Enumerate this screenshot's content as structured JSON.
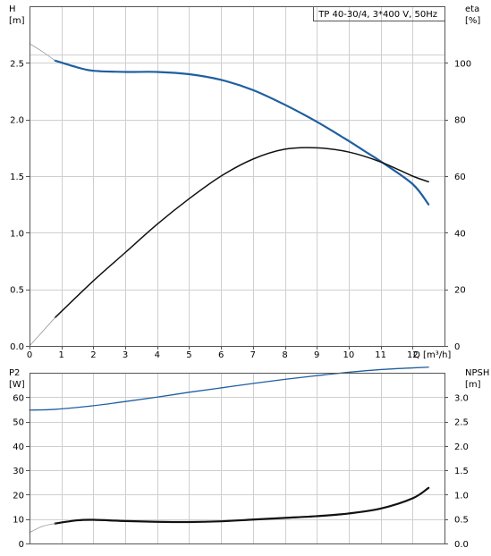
{
  "chart_data": [
    {
      "type": "line",
      "title": "TP 40-30/4, 3*400 V, 50Hz",
      "x_label": "Q [m³/h]",
      "x_ticks": [
        "0",
        "1",
        "2",
        "3",
        "4",
        "5",
        "6",
        "7",
        "8",
        "9",
        "10",
        "11",
        "12"
      ],
      "xlim": [
        0,
        13
      ],
      "left_axis": {
        "label_name": "H",
        "label_unit": "[m]",
        "ticks": [
          "0.0",
          "0.5",
          "1.0",
          "1.5",
          "2.0",
          "2.5"
        ],
        "ylim": [
          0,
          3.0
        ]
      },
      "right_axis": {
        "label_name": "eta",
        "label_unit": "[%]",
        "ticks": [
          "0",
          "20",
          "40",
          "60",
          "80",
          "100"
        ],
        "ylim": [
          0,
          120
        ]
      },
      "grid": true,
      "series": [
        {
          "axis": "left",
          "color": "#1f5fa0",
          "width": 2.2,
          "x": [
            0.8,
            1.5,
            2.0,
            3.0,
            4.0,
            5.0,
            6.0,
            7.0,
            8.0,
            9.0,
            10.0,
            10.5,
            11.0,
            12.0,
            12.5
          ],
          "y": [
            2.52,
            2.46,
            2.43,
            2.42,
            2.42,
            2.4,
            2.35,
            2.26,
            2.13,
            1.98,
            1.81,
            1.72,
            1.63,
            1.43,
            1.25
          ]
        },
        {
          "axis": "left",
          "color": "#999999",
          "width": 0.8,
          "x": [
            0.0,
            0.4,
            0.8
          ],
          "y": [
            2.67,
            2.6,
            2.52
          ]
        },
        {
          "axis": "right",
          "color": "#111111",
          "width": 1.5,
          "x": [
            0.8,
            2.0,
            3.0,
            4.0,
            5.0,
            6.0,
            7.0,
            8.0,
            9.0,
            10.0,
            11.0,
            12.0,
            12.5
          ],
          "y": [
            10,
            23,
            33,
            43,
            52,
            60,
            66,
            69.5,
            70,
            68.5,
            65,
            60,
            58
          ]
        },
        {
          "axis": "right",
          "color": "#999999",
          "width": 0.8,
          "x": [
            0.0,
            0.4,
            0.8
          ],
          "y": [
            0,
            5,
            10
          ]
        }
      ]
    },
    {
      "type": "line",
      "x_label": "",
      "x_ticks": [],
      "xlim": [
        0,
        13
      ],
      "left_axis": {
        "label_name": "P2",
        "label_unit": "[W]",
        "ticks": [
          "0",
          "10",
          "20",
          "30",
          "40",
          "50",
          "60"
        ],
        "ylim": [
          0,
          70
        ]
      },
      "right_axis": {
        "label_name": "NPSH",
        "label_unit": "[m]",
        "ticks": [
          "0.0",
          "0.5",
          "1.0",
          "1.5",
          "2.0",
          "2.5",
          "3.0"
        ],
        "ylim": [
          0,
          3.5
        ]
      },
      "grid": true,
      "series": [
        {
          "axis": "left",
          "color": "#1f5fa0",
          "width": 1.3,
          "x": [
            0.0,
            0.8,
            2.0,
            3.0,
            4.0,
            5.0,
            6.0,
            7.0,
            8.0,
            9.0,
            10.0,
            11.0,
            12.0,
            12.5
          ],
          "y": [
            54.7,
            55.0,
            56.5,
            58.2,
            60.0,
            62.0,
            63.8,
            65.6,
            67.3,
            68.8,
            70.2,
            71.3,
            72.0,
            72.3
          ]
        },
        {
          "axis": "left",
          "color": "#111111",
          "width": 2.2,
          "x": [
            0.8,
            1.5,
            2.0,
            3.0,
            4.0,
            5.0,
            6.0,
            7.0,
            8.0,
            9.0,
            10.0,
            11.0,
            12.0,
            12.5
          ],
          "y": [
            8.2,
            9.5,
            9.7,
            9.2,
            8.9,
            8.8,
            9.1,
            9.8,
            10.5,
            11.2,
            12.3,
            14.3,
            18.5,
            22.8
          ]
        },
        {
          "axis": "left",
          "color": "#999999",
          "width": 0.8,
          "x": [
            0.0,
            0.4,
            0.8
          ],
          "y": [
            4.5,
            7.0,
            8.2
          ]
        }
      ]
    }
  ]
}
